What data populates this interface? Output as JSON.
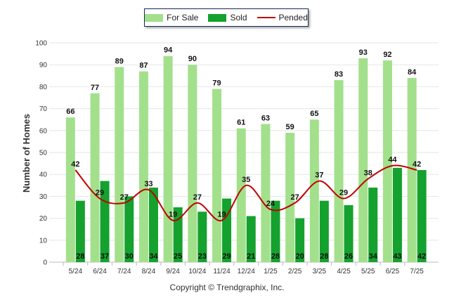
{
  "chart_data": {
    "type": "bar",
    "ylabel": "Number of Homes",
    "ylim": [
      0,
      100
    ],
    "yticks": [
      0,
      10,
      20,
      30,
      40,
      50,
      60,
      70,
      80,
      90,
      100
    ],
    "categories": [
      "5/24",
      "6/24",
      "7/24",
      "8/24",
      "9/24",
      "10/24",
      "11/24",
      "12/24",
      "1/25",
      "2/25",
      "3/25",
      "4/25",
      "5/25",
      "6/25",
      "7/25"
    ],
    "series": [
      {
        "name": "For Sale",
        "kind": "bar",
        "color": "#a3e08c",
        "values": [
          66,
          77,
          89,
          87,
          94,
          90,
          79,
          61,
          63,
          59,
          65,
          83,
          93,
          92,
          84
        ]
      },
      {
        "name": "Sold",
        "kind": "bar",
        "color": "#15a12e",
        "values": [
          28,
          37,
          30,
          34,
          25,
          23,
          29,
          21,
          28,
          20,
          28,
          26,
          34,
          43,
          42
        ]
      },
      {
        "name": "Pended",
        "kind": "line",
        "color": "#c00000",
        "values": [
          42,
          29,
          27,
          33,
          19,
          27,
          19,
          35,
          24,
          27,
          37,
          29,
          38,
          44,
          42
        ]
      }
    ],
    "grid": true,
    "legend": "top-center"
  },
  "legend": {
    "for_sale": "For Sale",
    "sold": "Sold",
    "pended": "Pended"
  },
  "footer": {
    "copyright": "Copyright © Trendgraphix, Inc."
  }
}
